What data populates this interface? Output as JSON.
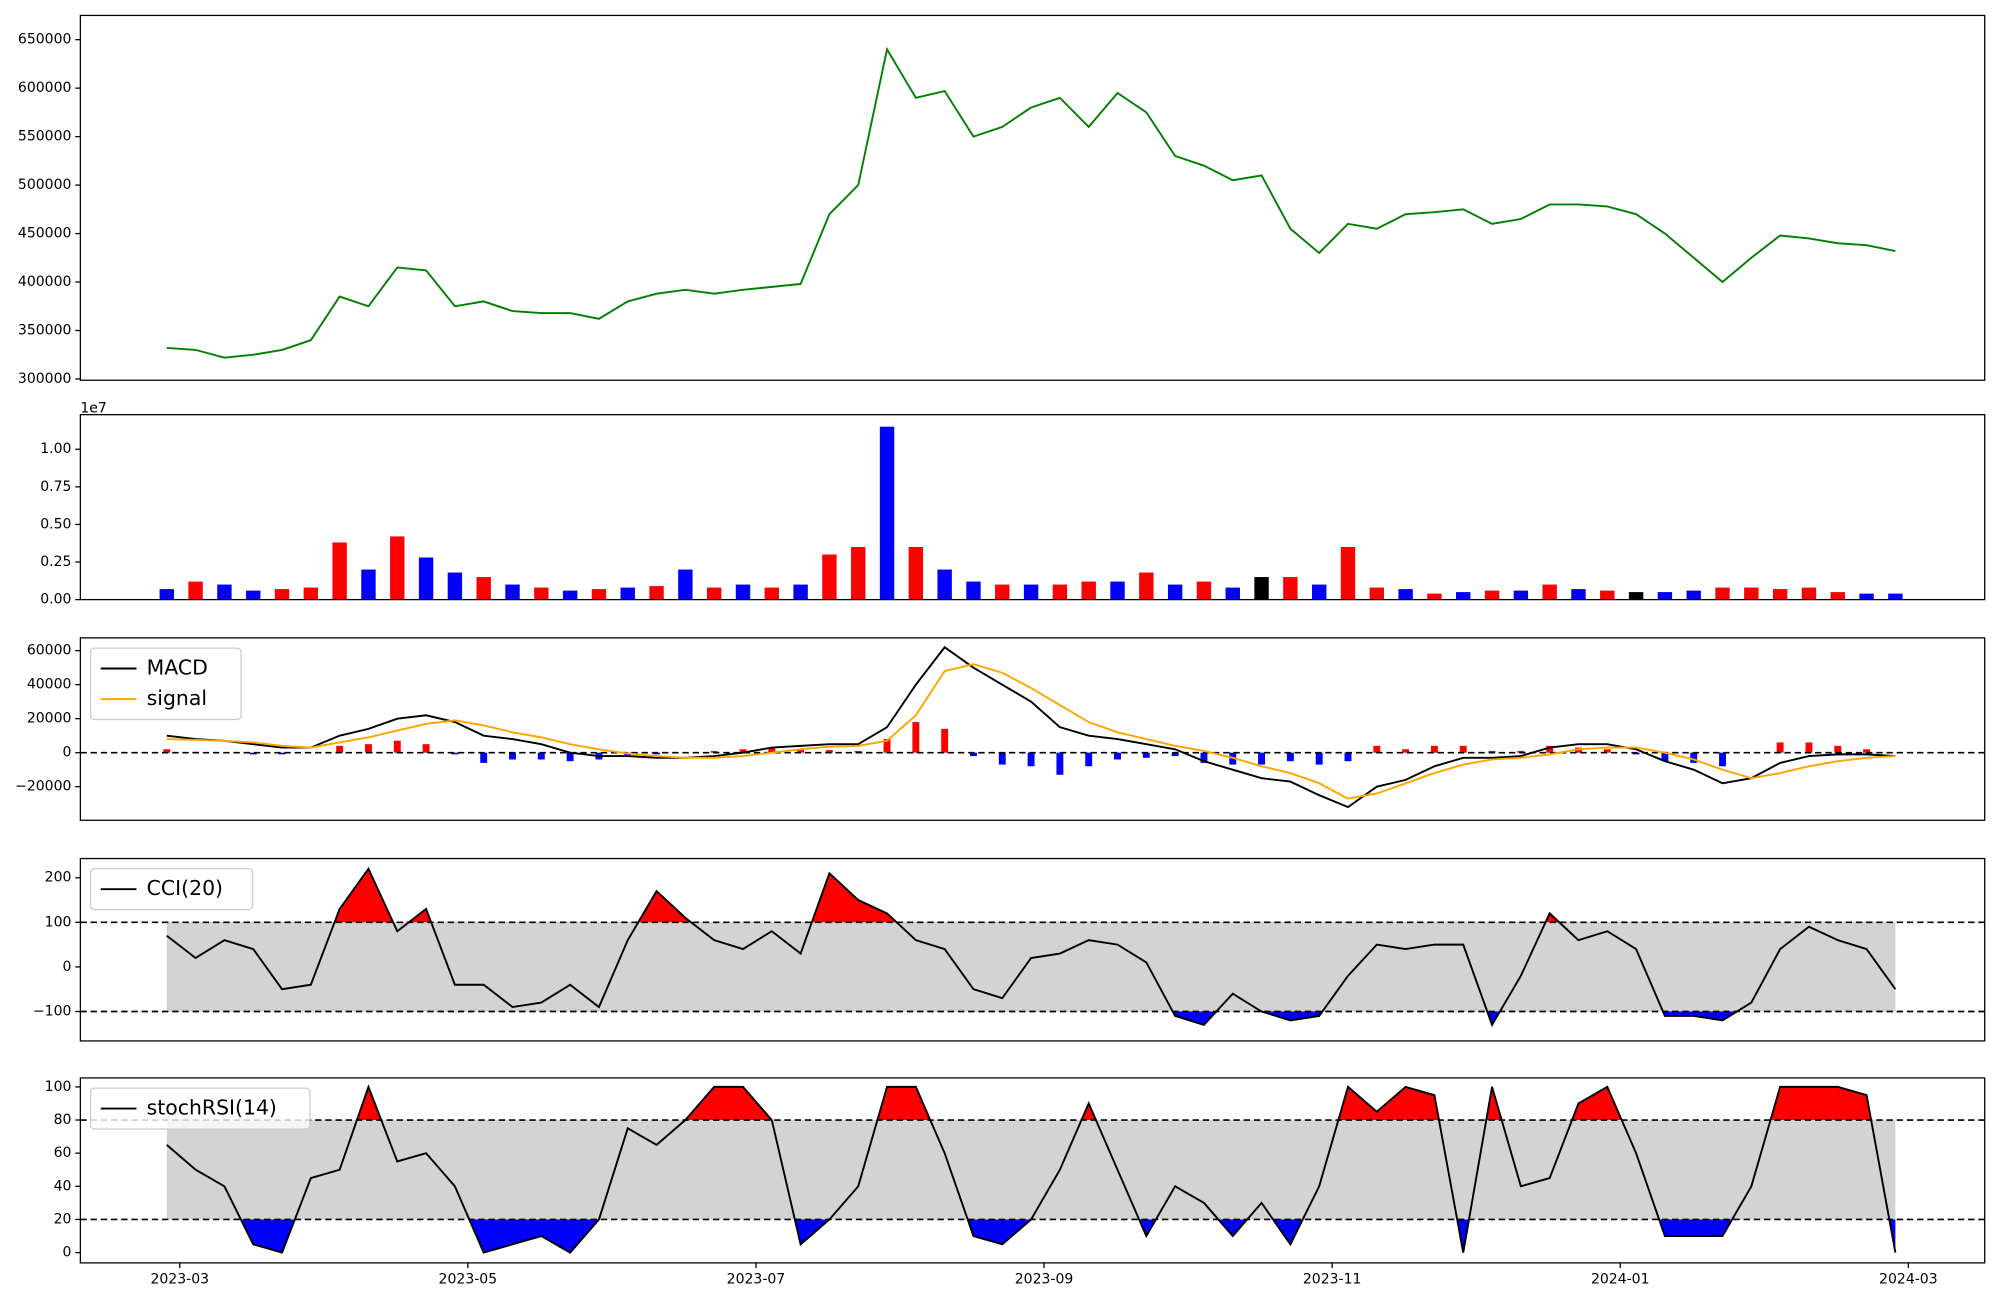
{
  "chart_data": [
    {
      "type": "line",
      "ylim": [
        298700,
        675000
      ],
      "yticks": [
        300000,
        350000,
        400000,
        450000,
        500000,
        550000,
        600000,
        650000
      ],
      "series": [
        {
          "name": "close",
          "color": "#008000",
          "values": [
            332000,
            330000,
            322000,
            325000,
            330000,
            340000,
            385000,
            375000,
            415000,
            412000,
            375000,
            380000,
            370000,
            368000,
            368000,
            362000,
            380000,
            388000,
            392000,
            388000,
            392000,
            395000,
            398000,
            470000,
            500000,
            640000,
            590000,
            597000,
            550000,
            560000,
            580000,
            590000,
            560000,
            595000,
            575000,
            530000,
            520000,
            505000,
            510000,
            455000,
            430000,
            460000,
            455000,
            470000,
            472000,
            475000,
            460000,
            465000,
            480000,
            480000,
            478000,
            470000,
            450000,
            425000,
            400000,
            425000,
            448000,
            445000,
            440000,
            438000,
            432000
          ]
        }
      ]
    },
    {
      "type": "bar",
      "offset_label": "1e7",
      "ylim": [
        0,
        1.23
      ],
      "yticks": [
        {
          "value": 0,
          "label": "0.00"
        },
        {
          "value": 0.25,
          "label": "0.25"
        },
        {
          "value": 0.5,
          "label": "0.50"
        },
        {
          "value": 0.75,
          "label": "0.75"
        },
        {
          "value": 1,
          "label": "1.00"
        }
      ],
      "values": [
        0.07,
        0.12,
        0.1,
        0.06,
        0.07,
        0.08,
        0.38,
        0.2,
        0.42,
        0.28,
        0.18,
        0.15,
        0.1,
        0.08,
        0.06,
        0.07,
        0.08,
        0.09,
        0.2,
        0.08,
        0.1,
        0.08,
        0.1,
        0.3,
        0.35,
        1.15,
        0.35,
        0.2,
        0.12,
        0.1,
        0.1,
        0.1,
        0.12,
        0.12,
        0.18,
        0.1,
        0.12,
        0.08,
        0.15,
        0.15,
        0.1,
        0.35,
        0.08,
        0.07,
        0.04,
        0.05,
        0.06,
        0.06,
        0.1,
        0.07,
        0.06,
        0.05,
        0.05,
        0.06,
        0.08,
        0.08,
        0.07,
        0.08,
        0.05,
        0.04,
        0.04
      ],
      "colors": [
        "blue",
        "red",
        "blue",
        "blue",
        "red",
        "red",
        "red",
        "blue",
        "red",
        "blue",
        "blue",
        "red",
        "blue",
        "red",
        "blue",
        "red",
        "blue",
        "red",
        "blue",
        "red",
        "blue",
        "red",
        "blue",
        "red",
        "red",
        "blue",
        "red",
        "blue",
        "blue",
        "red",
        "blue",
        "red",
        "red",
        "blue",
        "red",
        "blue",
        "red",
        "blue",
        "black",
        "red",
        "blue",
        "red",
        "red",
        "blue",
        "red",
        "blue",
        "red",
        "blue",
        "red",
        "blue",
        "red",
        "black",
        "blue",
        "blue",
        "red",
        "red",
        "red",
        "red",
        "red",
        "blue",
        "blue"
      ]
    },
    {
      "type": "macd",
      "ylim": [
        -39750,
        67500
      ],
      "yticks": [
        {
          "value": -20000,
          "label": "−20000"
        },
        0,
        20000,
        40000,
        60000
      ],
      "hline": 0,
      "legend": "upper left",
      "pos_color": "#ff0000",
      "neg_color": "#0000ff",
      "histogram": [
        2000,
        500,
        0,
        -1000,
        -1000,
        0,
        4000,
        5000,
        7000,
        5000,
        -1000,
        -6000,
        -4000,
        -4000,
        -5000,
        -4000,
        -1500,
        -1000,
        0,
        1000,
        2000,
        3000,
        2000,
        1500,
        1000,
        8000,
        18000,
        14000,
        -2000,
        -7000,
        -8000,
        -13000,
        -8000,
        -4000,
        -3000,
        -2000,
        -6000,
        -7000,
        -7000,
        -5000,
        -7000,
        -5000,
        4000,
        2000,
        4000,
        4000,
        1000,
        1000,
        4000,
        3000,
        2000,
        -1000,
        -5000,
        -6000,
        -8000,
        0,
        6000,
        6000,
        4000,
        2000,
        0
      ],
      "series": [
        {
          "name": "MACD",
          "color": "#000000",
          "values": [
            10000,
            8000,
            7000,
            5000,
            3000,
            3000,
            10000,
            14000,
            20000,
            22000,
            18000,
            10000,
            8000,
            5000,
            0,
            -2000,
            -2000,
            -3000,
            -3000,
            -2000,
            0,
            3000,
            4000,
            5000,
            5000,
            15000,
            40000,
            62000,
            50000,
            40000,
            30000,
            15000,
            10000,
            8000,
            5000,
            2000,
            -5000,
            -10000,
            -15000,
            -17000,
            -25000,
            -32000,
            -20000,
            -16000,
            -8000,
            -3000,
            -3000,
            -2000,
            3000,
            5000,
            5000,
            2000,
            -5000,
            -10000,
            -18000,
            -15000,
            -6000,
            -2000,
            -1000,
            -1000,
            -2000
          ]
        },
        {
          "name": "signal",
          "color": "#ffa500",
          "values": [
            8000,
            7500,
            7000,
            6000,
            4000,
            3000,
            6000,
            9000,
            13000,
            17000,
            19000,
            16000,
            12000,
            9000,
            5000,
            2000,
            -500,
            -2000,
            -3000,
            -3000,
            -2000,
            0,
            2000,
            3500,
            4000,
            7000,
            22000,
            48000,
            52000,
            47000,
            38000,
            28000,
            18000,
            12000,
            8000,
            4000,
            1000,
            -3000,
            -8000,
            -12000,
            -18000,
            -27000,
            -24000,
            -18000,
            -12000,
            -7000,
            -4000,
            -3000,
            -1000,
            2000,
            3000,
            3000,
            0,
            -4000,
            -10000,
            -15000,
            -12000,
            -8000,
            -5000,
            -3000,
            -2000
          ]
        }
      ]
    },
    {
      "type": "oscillator",
      "ylim": [
        -166,
        243
      ],
      "yticks": [
        {
          "value": -100,
          "label": "−100"
        },
        0,
        100,
        200
      ],
      "upper": 100,
      "lower": -100,
      "legend": "upper left",
      "band_color": "#d3d3d3",
      "upper_color": "#ff0000",
      "lower_color": "#0000ff",
      "series": [
        {
          "name": "CCI(20)",
          "color": "#000000",
          "values": [
            70,
            20,
            60,
            40,
            -50,
            -40,
            130,
            220,
            80,
            130,
            -40,
            -40,
            -90,
            -80,
            -40,
            -90,
            60,
            170,
            110,
            60,
            40,
            80,
            30,
            210,
            150,
            120,
            60,
            40,
            -50,
            -70,
            20,
            30,
            60,
            50,
            10,
            -110,
            -130,
            -60,
            -100,
            -120,
            -110,
            -20,
            50,
            40,
            50,
            50,
            -130,
            -20,
            120,
            60,
            80,
            40,
            -110,
            -110,
            -120,
            -80,
            40,
            90,
            60,
            40,
            -50
          ]
        }
      ]
    },
    {
      "type": "oscillator",
      "ylim": [
        -6.2,
        105.4
      ],
      "yticks": [
        0,
        20,
        40,
        60,
        80,
        100
      ],
      "upper": 80,
      "lower": 20,
      "legend": "upper left",
      "band_color": "#d3d3d3",
      "upper_color": "#ff0000",
      "lower_color": "#0000ff",
      "xlim": [
        1.31,
        14.53
      ],
      "xticks": [
        {
          "value": 2,
          "label": "2023-03"
        },
        {
          "value": 4,
          "label": "2023-05"
        },
        {
          "value": 6,
          "label": "2023-07"
        },
        {
          "value": 8,
          "label": "2023-09"
        },
        {
          "value": 10,
          "label": "2023-11"
        },
        {
          "value": 12,
          "label": "2024-01"
        },
        {
          "value": 14,
          "label": "2024-03"
        }
      ],
      "x": [
        1.91,
        2.11,
        2.31,
        2.51,
        2.71,
        2.91,
        3.11,
        3.31,
        3.51,
        3.71,
        3.91,
        4.11,
        4.31,
        4.51,
        4.71,
        4.91,
        5.11,
        5.31,
        5.51,
        5.71,
        5.91,
        6.11,
        6.31,
        6.51,
        6.71,
        6.91,
        7.11,
        7.31,
        7.51,
        7.71,
        7.91,
        8.11,
        8.31,
        8.51,
        8.71,
        8.91,
        9.11,
        9.31,
        9.51,
        9.71,
        9.91,
        10.11,
        10.31,
        10.51,
        10.71,
        10.91,
        11.11,
        11.31,
        11.51,
        11.71,
        11.91,
        12.11,
        12.31,
        12.51,
        12.71,
        12.91,
        13.11,
        13.31,
        13.51,
        13.71,
        13.91
      ],
      "series": [
        {
          "name": "stochRSI(14)",
          "color": "#000000",
          "values": [
            65,
            50,
            40,
            5,
            0,
            45,
            50,
            100,
            55,
            60,
            40,
            0,
            5,
            10,
            0,
            20,
            75,
            65,
            80,
            100,
            100,
            80,
            5,
            20,
            40,
            100,
            100,
            60,
            10,
            5,
            20,
            50,
            90,
            50,
            10,
            40,
            30,
            10,
            30,
            5,
            40,
            100,
            85,
            100,
            95,
            0,
            100,
            40,
            45,
            90,
            100,
            60,
            10,
            10,
            10,
            40,
            100,
            100,
            100,
            95,
            0
          ]
        }
      ]
    }
  ]
}
